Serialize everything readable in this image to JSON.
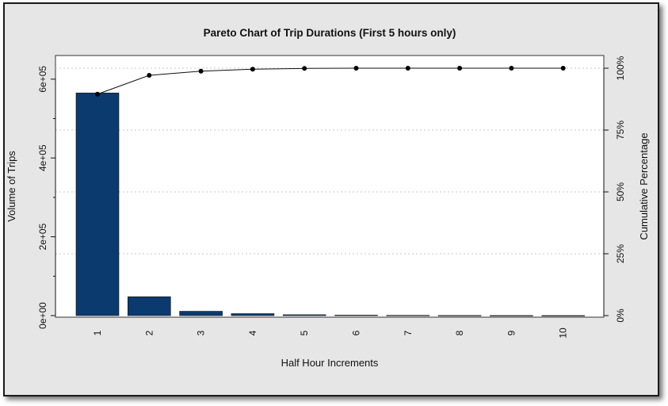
{
  "chart_data": {
    "type": "bar",
    "title": "Pareto Chart of Trip Durations (First 5 hours only)",
    "xlabel": "Half Hour Increments",
    "ylabel": "Volume of Trips",
    "y2label": "Cumulative Percentage",
    "categories": [
      "1",
      "2",
      "3",
      "4",
      "5",
      "6",
      "7",
      "8",
      "9",
      "10"
    ],
    "values": [
      565000,
      48000,
      11000,
      5000,
      2200,
      1200,
      700,
      400,
      250,
      150
    ],
    "cumulative_percent": [
      89.5,
      97.1,
      98.8,
      99.6,
      99.9,
      100.0,
      100.0,
      100.0,
      100.0,
      100.0
    ],
    "ylim": [
      0,
      660000
    ],
    "y_ticks": [
      0,
      200000,
      400000,
      600000
    ],
    "y_tick_labels": [
      "0e+00",
      "2e+05",
      "4e+05",
      "6e+05"
    ],
    "y2_ticks": [
      0,
      25,
      50,
      75,
      100
    ],
    "y2_tick_labels": [
      "0%",
      "25%",
      "50%",
      "75%",
      "100%"
    ],
    "bar_color": "#0b3a6e",
    "grid": "horizontal-dotted",
    "legend": "none"
  }
}
